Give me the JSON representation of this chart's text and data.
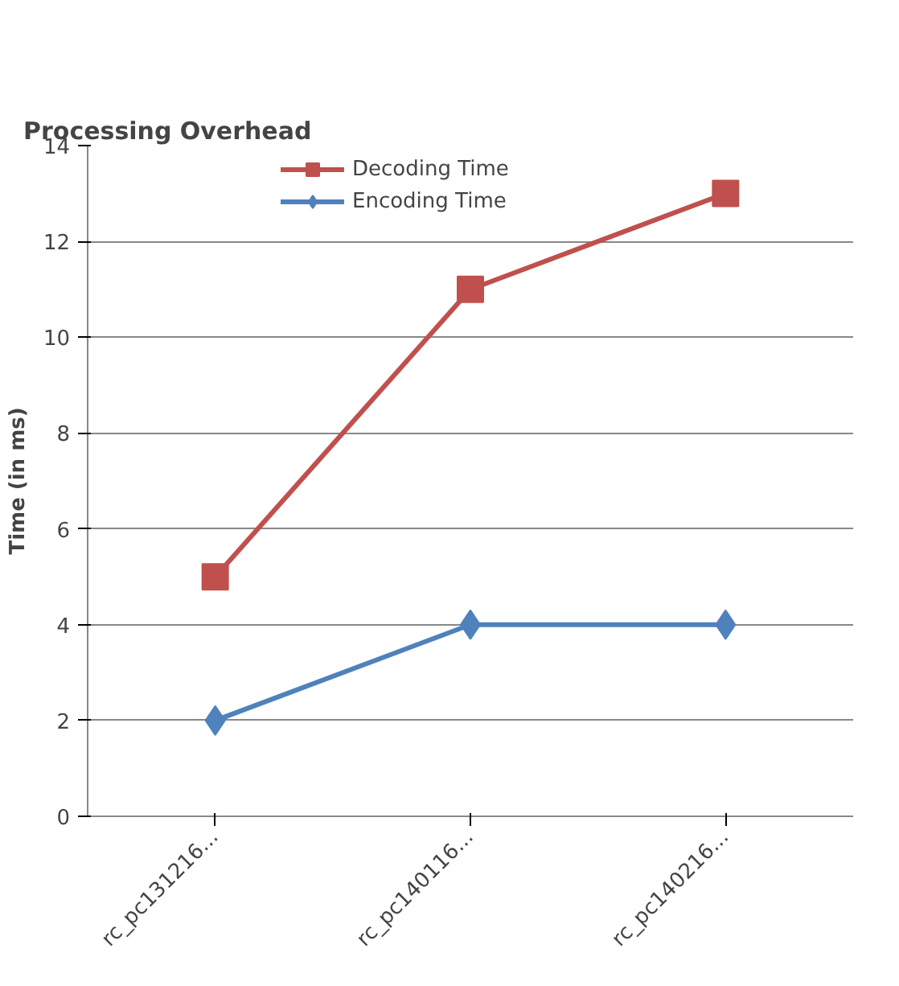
{
  "chart_data": {
    "type": "line",
    "title": "Processing Overhead",
    "ylabel": "Time (in ms)",
    "categories": [
      "rc_pc131216...",
      "rc_pc140116...",
      "rc_pc140216..."
    ],
    "series": [
      {
        "name": "Decoding Time",
        "color": "#c0504d",
        "values": [
          5,
          11,
          13
        ],
        "marker": "square"
      },
      {
        "name": "Encoding Time",
        "color": "#4f81bd",
        "values": [
          2,
          4,
          4
        ],
        "marker": "diamond"
      }
    ],
    "ylim": [
      0,
      14
    ],
    "yticks": [
      0,
      2,
      4,
      6,
      8,
      10,
      12,
      14
    ],
    "grid": "y",
    "legend": "top"
  }
}
